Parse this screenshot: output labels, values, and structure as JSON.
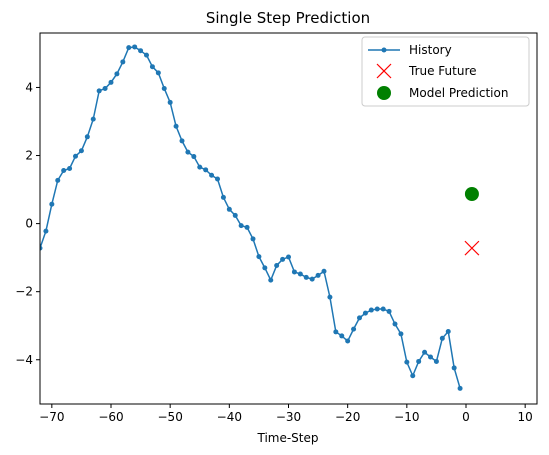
{
  "chart_data": {
    "type": "line",
    "title": "Single Step Prediction",
    "xlabel": "Time-Step",
    "ylabel": "",
    "xlim": [
      -72,
      12
    ],
    "ylim": [
      -5.3,
      5.6
    ],
    "xticks": [
      -70,
      -60,
      -50,
      -40,
      -30,
      -20,
      -10,
      0,
      10
    ],
    "xtick_labels": [
      "−70",
      "−60",
      "−50",
      "−40",
      "−30",
      "−20",
      "−10",
      "0",
      "10"
    ],
    "yticks": [
      -4,
      -2,
      0,
      2,
      4
    ],
    "ytick_labels": [
      "−4",
      "−2",
      "0",
      "2",
      "4"
    ],
    "grid": false,
    "legend": {
      "position": "top-right",
      "entries": [
        "History",
        "True Future",
        "Model Prediction"
      ]
    },
    "colors": {
      "history": "#1f77b4",
      "true_future": "#ff0000",
      "prediction": "#008000"
    },
    "series": [
      {
        "name": "History",
        "marker": "dot-line",
        "x": [
          -72,
          -71,
          -70,
          -69,
          -68,
          -67,
          -66,
          -65,
          -64,
          -63,
          -62,
          -61,
          -60,
          -59,
          -58,
          -57,
          -56,
          -55,
          -54,
          -53,
          -52,
          -51,
          -50,
          -49,
          -48,
          -47,
          -46,
          -45,
          -44,
          -43,
          -42,
          -41,
          -40,
          -39,
          -38,
          -37,
          -36,
          -35,
          -34,
          -33,
          -32,
          -31,
          -30,
          -29,
          -28,
          -27,
          -26,
          -25,
          -24,
          -23,
          -22,
          -21,
          -20,
          -19,
          -18,
          -17,
          -16,
          -15,
          -14,
          -13,
          -12,
          -11,
          -10,
          -9,
          -8,
          -7,
          -6,
          -5,
          -4,
          -3,
          -2,
          -1
        ],
        "values": [
          -0.72,
          -0.22,
          0.57,
          1.27,
          1.56,
          1.62,
          1.98,
          2.14,
          2.55,
          3.07,
          3.9,
          3.97,
          4.15,
          4.4,
          4.75,
          5.17,
          5.19,
          5.08,
          4.95,
          4.61,
          4.43,
          3.97,
          3.56,
          2.86,
          2.43,
          2.1,
          1.97,
          1.66,
          1.58,
          1.42,
          1.31,
          0.77,
          0.42,
          0.24,
          -0.06,
          -0.11,
          -0.45,
          -0.97,
          -1.3,
          -1.66,
          -1.23,
          -1.05,
          -0.98,
          -1.42,
          -1.48,
          -1.58,
          -1.63,
          -1.52,
          -1.4,
          -2.16,
          -3.18,
          -3.3,
          -3.45,
          -3.1,
          -2.77,
          -2.63,
          -2.54,
          -2.51,
          -2.51,
          -2.58,
          -2.95,
          -3.24,
          -4.07,
          -4.47,
          -4.05,
          -3.78,
          -3.92,
          -4.05,
          -3.37,
          -3.17,
          -4.24,
          -4.84
        ]
      },
      {
        "name": "True Future",
        "marker": "x",
        "x": [
          1
        ],
        "values": [
          -0.72
        ]
      },
      {
        "name": "Model Prediction",
        "marker": "circle",
        "x": [
          1
        ],
        "values": [
          0.87
        ]
      }
    ]
  }
}
